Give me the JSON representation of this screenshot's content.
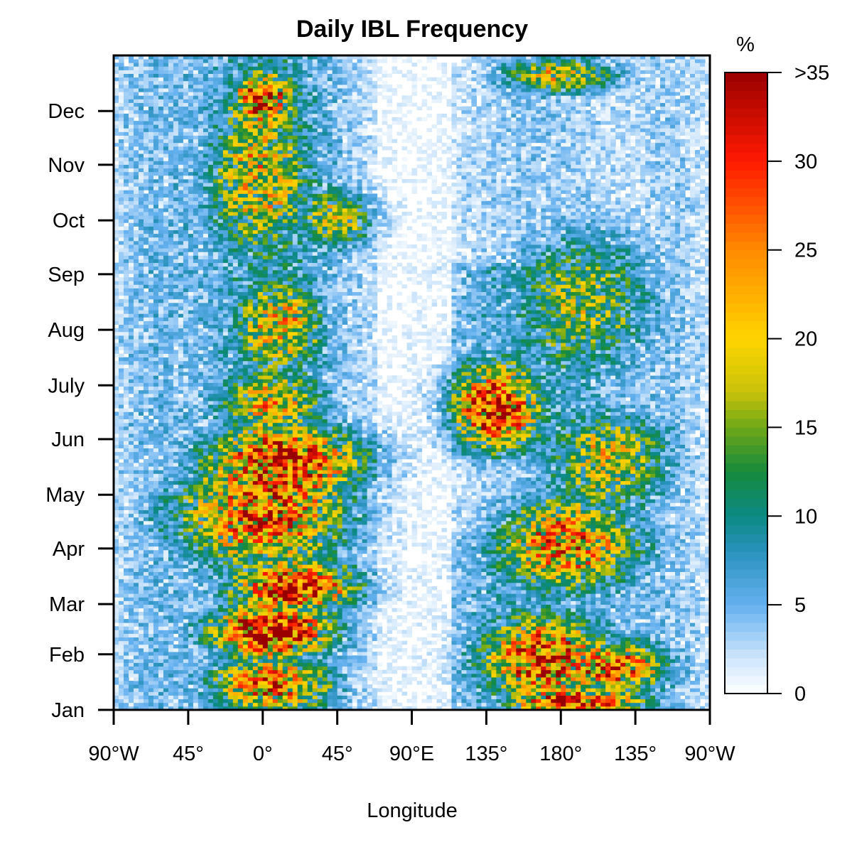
{
  "chart_data": {
    "type": "heatmap",
    "title": "Daily IBL Frequency",
    "xlabel": "Longitude",
    "ylabel": "",
    "x_ticks": [
      "90°W",
      "45°",
      "0°",
      "45°",
      "90°E",
      "135°",
      "180°",
      "135°",
      "90°W"
    ],
    "x_tick_values": [
      -90,
      -45,
      0,
      45,
      90,
      135,
      180,
      225,
      270
    ],
    "xlim": [
      -90,
      270
    ],
    "y_ticks": [
      "Jan",
      "Feb",
      "Mar",
      "Apr",
      "May",
      "Jun",
      "July",
      "Aug",
      "Sep",
      "Oct",
      "Nov",
      "Dec"
    ],
    "y_tick_values": [
      1,
      32,
      60,
      91,
      121,
      152,
      182,
      213,
      244,
      274,
      305,
      335
    ],
    "ylim": [
      1,
      366
    ],
    "colorbar": {
      "unit_label": "%",
      "tick_labels": [
        "0",
        "5",
        "10",
        "15",
        "20",
        "25",
        "30",
        ">35"
      ],
      "tick_values": [
        0,
        5,
        10,
        15,
        20,
        25,
        30,
        35
      ],
      "range": [
        0,
        35
      ],
      "stops": [
        {
          "v": 0,
          "color": "#ffffff"
        },
        {
          "v": 2,
          "color": "#cfe6fb"
        },
        {
          "v": 5,
          "color": "#64b0ef"
        },
        {
          "v": 8,
          "color": "#2a92bd"
        },
        {
          "v": 10,
          "color": "#0c8a85"
        },
        {
          "v": 12.5,
          "color": "#168a3c"
        },
        {
          "v": 15,
          "color": "#6ea818"
        },
        {
          "v": 17,
          "color": "#c8c20a"
        },
        {
          "v": 20,
          "color": "#ffd500"
        },
        {
          "v": 25,
          "color": "#ff8a00"
        },
        {
          "v": 30,
          "color": "#ff1a00"
        },
        {
          "v": 35,
          "color": "#990000"
        }
      ]
    },
    "hotspots": [
      {
        "lon": 0,
        "day": 342,
        "dlon": 18,
        "dday": 14,
        "value": 28
      },
      {
        "lon": -2,
        "day": 300,
        "dlon": 30,
        "dday": 45,
        "value": 17
      },
      {
        "lon": 45,
        "day": 275,
        "dlon": 22,
        "dday": 16,
        "value": 16
      },
      {
        "lon": 10,
        "day": 215,
        "dlon": 25,
        "dday": 25,
        "value": 18
      },
      {
        "lon": 5,
        "day": 172,
        "dlon": 30,
        "dday": 20,
        "value": 17
      },
      {
        "lon": 15,
        "day": 140,
        "dlon": 45,
        "dday": 18,
        "value": 30
      },
      {
        "lon": 0,
        "day": 110,
        "dlon": 50,
        "dday": 28,
        "value": 24
      },
      {
        "lon": 20,
        "day": 70,
        "dlon": 35,
        "dday": 14,
        "value": 30
      },
      {
        "lon": 5,
        "day": 45,
        "dlon": 35,
        "dday": 14,
        "value": 33
      },
      {
        "lon": 5,
        "day": 15,
        "dlon": 35,
        "dday": 14,
        "value": 24
      },
      {
        "lon": 140,
        "day": 170,
        "dlon": 25,
        "dday": 22,
        "value": 32
      },
      {
        "lon": 185,
        "day": 95,
        "dlon": 40,
        "dday": 25,
        "value": 24
      },
      {
        "lon": 170,
        "day": 30,
        "dlon": 35,
        "dday": 22,
        "value": 28
      },
      {
        "lon": 215,
        "day": 25,
        "dlon": 30,
        "dday": 14,
        "value": 24
      },
      {
        "lon": 190,
        "day": 5,
        "dlon": 40,
        "dday": 8,
        "value": 26
      },
      {
        "lon": 180,
        "day": 355,
        "dlon": 35,
        "dday": 10,
        "value": 17
      },
      {
        "lon": 195,
        "day": 230,
        "dlon": 40,
        "dday": 40,
        "value": 13
      },
      {
        "lon": 210,
        "day": 140,
        "dlon": 35,
        "dday": 25,
        "value": 18
      }
    ]
  }
}
